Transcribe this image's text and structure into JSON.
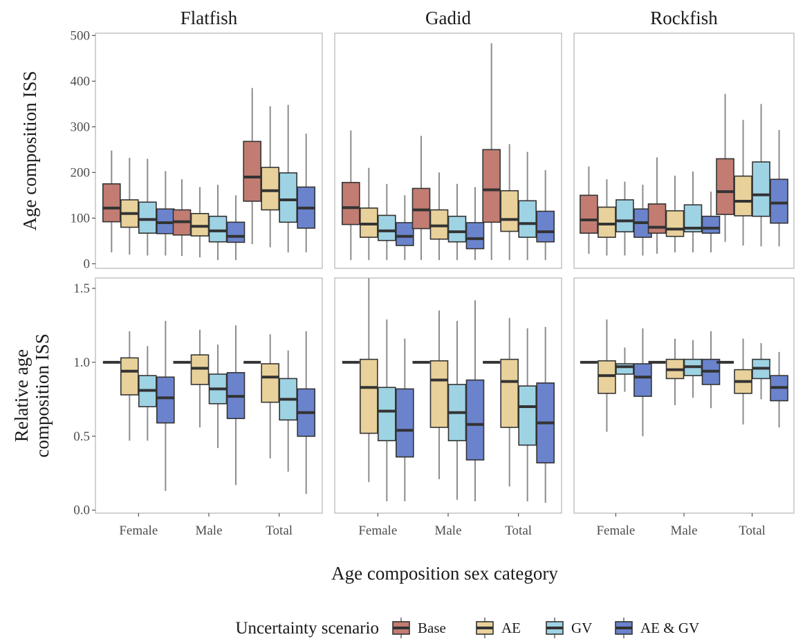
{
  "chart_data": {
    "type": "box",
    "panels_x": [
      "Flatfish",
      "Gadid",
      "Rockfish"
    ],
    "x_categories": [
      "Female",
      "Male",
      "Total"
    ],
    "xlabel": "Age composition sex category",
    "legend": {
      "title": "Uncertainty scenario",
      "placement": "bottom",
      "entries": [
        {
          "name": "Base",
          "color": "#c27c72"
        },
        {
          "name": "AE",
          "color": "#e8d19a"
        },
        {
          "name": "GV",
          "color": "#9ed3e4"
        },
        {
          "name": "AE & GV",
          "color": "#6a83cc"
        }
      ]
    },
    "rows": [
      {
        "ylabel_lines": [
          "Age composition ISS"
        ],
        "ylim": [
          -10,
          505
        ],
        "yticks": [
          0,
          100,
          200,
          300,
          400,
          500
        ],
        "ytick_labels": [
          "0",
          "100",
          "200",
          "300",
          "400",
          "500"
        ],
        "boxes": {
          "Flatfish": {
            "Female": [
              [
                25,
                92,
                122,
                175,
                248
              ],
              [
                20,
                80,
                110,
                140,
                232
              ],
              [
                18,
                67,
                97,
                135,
                230
              ],
              [
                18,
                66,
                90,
                120,
                203
              ]
            ],
            "Male": [
              [
                17,
                63,
                92,
                118,
                185
              ],
              [
                14,
                61,
                82,
                110,
                168
              ],
              [
                8,
                48,
                72,
                104,
                173
              ],
              [
                8,
                47,
                60,
                91,
                150
              ]
            ],
            "Total": [
              [
                43,
                137,
                190,
                268,
                385
              ],
              [
                36,
                118,
                160,
                211,
                345
              ],
              [
                25,
                91,
                140,
                199,
                348
              ],
              [
                25,
                78,
                122,
                168,
                285
              ]
            ]
          },
          "Gadid": {
            "Female": [
              [
                8,
                86,
                123,
                178,
                292
              ],
              [
                8,
                58,
                87,
                122,
                210
              ],
              [
                8,
                51,
                72,
                106,
                175
              ],
              [
                8,
                40,
                60,
                90,
                150
              ]
            ],
            "Male": [
              [
                8,
                77,
                118,
                165,
                280
              ],
              [
                8,
                54,
                83,
                118,
                200
              ],
              [
                8,
                48,
                70,
                104,
                175
              ],
              [
                8,
                33,
                55,
                90,
                168
              ]
            ],
            "Total": [
              [
                8,
                91,
                162,
                250,
                483
              ],
              [
                8,
                71,
                97,
                160,
                262
              ],
              [
                8,
                58,
                88,
                138,
                245
              ],
              [
                8,
                48,
                70,
                115,
                205
              ]
            ]
          },
          "Rockfish": {
            "Female": [
              [
                22,
                67,
                96,
                150,
                213
              ],
              [
                18,
                58,
                87,
                124,
                185
              ],
              [
                18,
                70,
                94,
                140,
                180
              ],
              [
                18,
                58,
                90,
                120,
                173
              ]
            ],
            "Male": [
              [
                22,
                67,
                80,
                131,
                233
              ],
              [
                25,
                60,
                76,
                116,
                193
              ],
              [
                25,
                70,
                78,
                129,
                202
              ],
              [
                25,
                67,
                78,
                104,
                158
              ]
            ],
            "Total": [
              [
                48,
                108,
                158,
                230,
                372
              ],
              [
                40,
                105,
                137,
                192,
                315
              ],
              [
                38,
                104,
                151,
                223,
                350
              ],
              [
                38,
                89,
                133,
                185,
                293
              ]
            ]
          }
        }
      },
      {
        "ylabel_lines": [
          "Relative age",
          "composition ISS"
        ],
        "ylim": [
          -0.02,
          1.57
        ],
        "yticks": [
          0,
          0.5,
          1,
          1.5
        ],
        "ytick_labels": [
          "0.0",
          "0.5",
          "1.0",
          "1.5"
        ],
        "boxes": {
          "Flatfish": {
            "Female": [
              [
                1,
                1,
                1,
                1,
                1
              ],
              [
                0.47,
                0.78,
                0.94,
                1.03,
                1.21
              ],
              [
                0.47,
                0.7,
                0.81,
                0.91,
                1.11
              ],
              [
                0.13,
                0.59,
                0.76,
                0.9,
                1.28
              ]
            ],
            "Male": [
              [
                1,
                1,
                1,
                1,
                1
              ],
              [
                0.56,
                0.85,
                0.96,
                1.05,
                1.22
              ],
              [
                0.42,
                0.72,
                0.82,
                0.92,
                1.12
              ],
              [
                0.17,
                0.62,
                0.77,
                0.93,
                1.25
              ]
            ],
            "Total": [
              [
                1,
                1,
                1,
                1,
                1
              ],
              [
                0.35,
                0.73,
                0.9,
                0.99,
                1.19
              ],
              [
                0.26,
                0.61,
                0.75,
                0.89,
                1.08
              ],
              [
                0.11,
                0.5,
                0.66,
                0.82,
                1.21
              ]
            ]
          },
          "Gadid": {
            "Female": [
              [
                1,
                1,
                1,
                1,
                1
              ],
              [
                0.19,
                0.52,
                0.83,
                1.02,
                1.57
              ],
              [
                0.06,
                0.47,
                0.67,
                0.83,
                1.29
              ],
              [
                0.06,
                0.36,
                0.54,
                0.82,
                1.16
              ]
            ],
            "Male": [
              [
                1,
                1,
                1,
                1,
                1
              ],
              [
                0.21,
                0.56,
                0.88,
                1.01,
                1.35
              ],
              [
                0.07,
                0.47,
                0.66,
                0.85,
                1.28
              ],
              [
                0.06,
                0.34,
                0.58,
                0.88,
                1.42
              ]
            ],
            "Total": [
              [
                1,
                1,
                1,
                1,
                1
              ],
              [
                0.16,
                0.56,
                0.87,
                1.02,
                1.3
              ],
              [
                0.06,
                0.44,
                0.7,
                0.84,
                1.23
              ],
              [
                0.05,
                0.32,
                0.59,
                0.86,
                1.24
              ]
            ]
          },
          "Rockfish": {
            "Female": [
              [
                1,
                1,
                1,
                1,
                1
              ],
              [
                0.53,
                0.79,
                0.91,
                1.01,
                1.29
              ],
              [
                0.8,
                0.92,
                0.97,
                0.99,
                1.1
              ],
              [
                0.5,
                0.77,
                0.9,
                0.99,
                1.23
              ]
            ],
            "Male": [
              [
                1,
                1,
                1,
                1,
                1
              ],
              [
                0.71,
                0.89,
                0.95,
                1.02,
                1.16
              ],
              [
                0.76,
                0.91,
                0.97,
                1.02,
                1.15
              ],
              [
                0.69,
                0.85,
                0.94,
                1.02,
                1.21
              ]
            ],
            "Total": [
              [
                1,
                1,
                1,
                1,
                1
              ],
              [
                0.58,
                0.79,
                0.87,
                0.95,
                1.16
              ],
              [
                0.75,
                0.89,
                0.96,
                1.02,
                1.13
              ],
              [
                0.56,
                0.74,
                0.83,
                0.91,
                1.07
              ]
            ]
          }
        }
      }
    ]
  }
}
